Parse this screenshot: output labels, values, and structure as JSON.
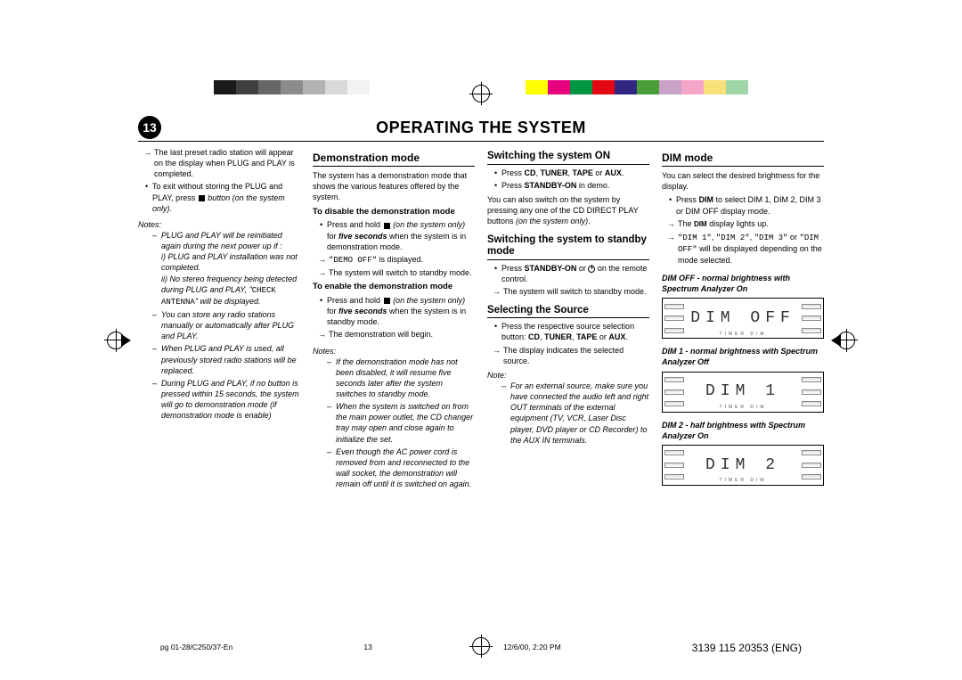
{
  "color_bar": [
    "#1a1a1a",
    "#404040",
    "#666666",
    "#8c8c8c",
    "#b3b3b3",
    "#d9d9d9",
    "#f2f2f2",
    "#ffffff",
    "#ffffff",
    "#ffffff",
    "#ffffff",
    "#ffffff",
    "#ffffff",
    "#ffffff",
    "#ffff00",
    "#e6007e",
    "#009640",
    "#e30613",
    "#312783",
    "#4a9e3a",
    "#c8a2c8",
    "#f5a6c8",
    "#f7e07a",
    "#9fd6a8"
  ],
  "header": {
    "page_num": "13",
    "title": "OPERATING THE SYSTEM"
  },
  "col1": {
    "preset_note": "The last preset radio station will appear on the display when PLUG and PLAY is completed.",
    "exit_bullet_pre": "To exit without storing the PLUG and PLAY, press ",
    "exit_bullet_post": " button (on the system only).",
    "notes_label": "Notes:",
    "n1": "PLUG and PLAY will be reinitiated again during the next power up if :",
    "n1a": "i) PLUG and PLAY installation was not completed.",
    "n1b_pre": "ii) No stereo frequency being detected during PLUG and PLAY, \"",
    "n1b_mid": "CHECK ANTENNA",
    "n1b_post": "\" will be displayed.",
    "n2": "You can store any radio stations manually or automatically after PLUG and PLAY.",
    "n3": "When PLUG and PLAY is used, all previously stored radio stations will be replaced.",
    "n4": "During PLUG and PLAY, if no button is pressed within 15 seconds, the system will go to demonstration mode (if demonstration mode is enable)"
  },
  "col2": {
    "h1": "Demonstration mode",
    "intro": "The system has a demonstration mode that shows the various features offered by the system.",
    "disable_h": "To disable the demonstration mode",
    "disable_b1_pre": "Press and hold ",
    "disable_b1_mid_it": "(on the system only)",
    "disable_b1_mid2": " for ",
    "disable_b1_bold": "five seconds",
    "disable_b1_post": " when the system is in demonstration mode.",
    "disable_a1": "\"DEMO OFF\" is displayed.",
    "disable_a2": "The system will switch to standby mode.",
    "enable_h": "To enable the demonstration mode",
    "enable_b1_pre": "Press and hold ",
    "enable_b1_mid_it": "(on the system only)",
    "enable_b1_mid2": " for ",
    "enable_b1_bold": "five seconds",
    "enable_b1_post": " when the system is in standby mode.",
    "enable_a1": "The demonstration will begin.",
    "notes_label": "Notes:",
    "note1": "If the demonstration mode has not been disabled, it will resume five seconds later after the system switches to standby mode.",
    "note2": "When the system is switched on from the main power outlet, the CD changer tray may open and close again to initialize the set.",
    "note3": "Even though the AC power cord is removed from and reconnected to the wall socket, the demonstration will remain off until it is switched on again."
  },
  "col3": {
    "h1": "Switching the system ON",
    "b1_pre": "Press ",
    "b1_bold": "CD",
    "b1_sep1": ", ",
    "b1_bold2": "TUNER",
    "b1_sep2": ", ",
    "b1_bold3": "TAPE",
    "b1_or": " or ",
    "b1_bold4": "AUX",
    "b1_post": ".",
    "b2_pre": "Press ",
    "b2_bold": "STANDBY-ON",
    "b2_post": " in demo.",
    "p2_pre": "You can also switch on the system by pressing any one of the CD DIRECT PLAY buttons ",
    "p2_it": "(on the system only)",
    "p2_post": ".",
    "h2": "Switching the system to standby mode",
    "sb_b1_pre": "Press ",
    "sb_b1_bold": "STANDBY-ON",
    "sb_b1_mid": " or ",
    "sb_b1_post": " on the remote control.",
    "sb_a1": "The system will switch to standby mode.",
    "h3": "Selecting the Source",
    "src_b1_pre": "Press the respective source selection button: ",
    "src_b1_bold": "CD",
    "src_sep1": ", ",
    "src_b2_bold": "TUNER",
    "src_sep2": ", ",
    "src_b3_bold": "TAPE",
    "src_or": " or ",
    "src_b4_bold": "AUX",
    "src_post": ".",
    "src_a1": "The display indicates the selected source.",
    "note_label": "Note:",
    "note1": "For an external source, make sure you have connected the audio left and right OUT terminals of the external equipment (TV, VCR, Laser Disc player, DVD player or CD Recorder) to the AUX IN terminals."
  },
  "col4": {
    "h1": "DIM mode",
    "intro": "You can select the desired brightness for the display.",
    "b1_pre": "Press ",
    "b1_bold": "DIM",
    "b1_post": " to select DIM 1, DIM 2, DIM 3 or DIM OFF display mode.",
    "a1_pre": "The ",
    "a1_bold": "DIM",
    "a1_post": " display lights up.",
    "a2": "\"DIM 1\", \"DIM 2\", \"DIM 3\" or \"DIM OFF\" will be displayed depending on the mode selected.",
    "cap1": "DIM OFF - normal brightness with Spectrum Analyzer On",
    "disp1": "DIM OFF",
    "cap2": "DIM 1 - normal brightness with Spectrum Analyzer Off",
    "disp2": "DIM 1",
    "cap3": "DIM 2 - half brightness with Spectrum Analyzer On",
    "disp3": "DIM 2",
    "under": "TIMER    DIM"
  },
  "footer": {
    "left": "pg 01-28/C250/37-En",
    "mid_num": "13",
    "date": "12/6/00, 2:20 PM",
    "pub": "3139 115 20353 (ENG)"
  }
}
